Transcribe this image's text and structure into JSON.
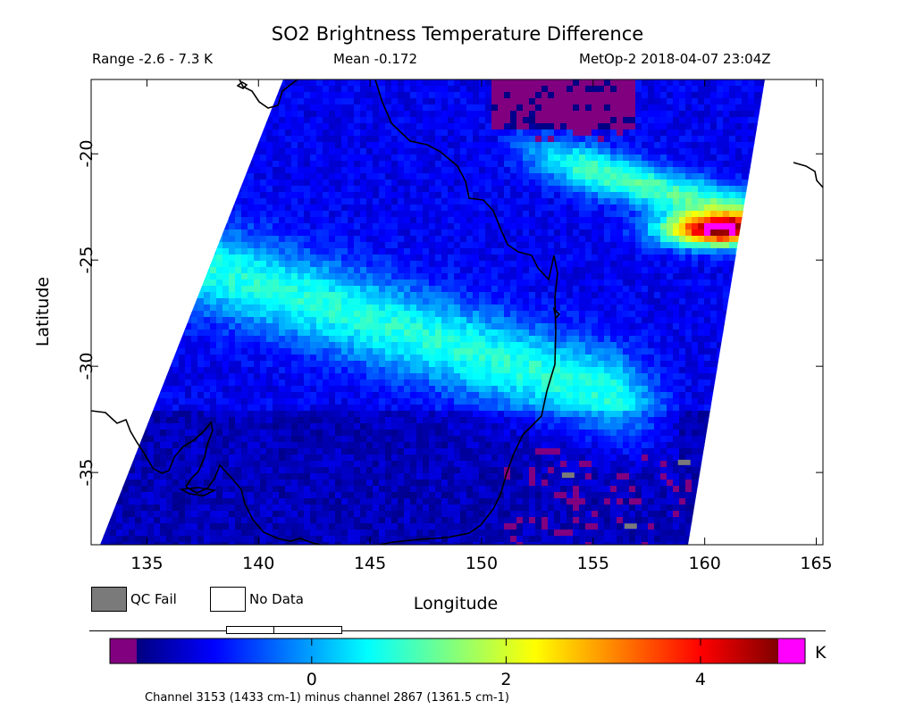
{
  "header": {
    "title": "SO2 Brightness Temperature Difference",
    "range_text": "Range -2.6 - 7.3 K",
    "mean_text": "Mean -0.172",
    "satellite_text": "MetOp-2 2018-04-07 23:04Z"
  },
  "legend": {
    "qc_fail_label": "QC Fail",
    "no_data_label": "No Data",
    "qc_fail_color": "#7a7a7a",
    "no_data_color": "#ffffff"
  },
  "colorbar": {
    "unit": "K",
    "ticks": [
      "0",
      "2",
      "4"
    ],
    "under_color": "#800080",
    "over_color": "#ff00ff",
    "footnote": "Channel 3153 (1433 cm-1) minus channel 2867 (1361.5 cm-1)"
  },
  "chart_data": {
    "type": "heatmap",
    "title": "SO2 Brightness Temperature Difference",
    "xlabel": "Longitude",
    "ylabel": "Latitude",
    "xlim": [
      132.5,
      165.3
    ],
    "ylim": [
      -38.4,
      -16.5
    ],
    "x_ticks": [
      135,
      140,
      145,
      150,
      155,
      160,
      165
    ],
    "y_ticks": [
      -20,
      -25,
      -30,
      -35
    ],
    "x_tick_labels": [
      "135",
      "140",
      "145",
      "150",
      "155",
      "160",
      "165"
    ],
    "y_tick_labels": [
      "-20",
      "-25",
      "-30",
      "-35"
    ],
    "value_range": [
      -2.6,
      7.3
    ],
    "mean": -0.172,
    "unit": "K",
    "colorbar_ticks": [
      0,
      2,
      4
    ],
    "colorbar_range": [
      -1.8,
      4.8
    ],
    "features": [
      {
        "name": "high BTD plume",
        "value_range": [
          3,
          7.3
        ],
        "lon": [
          156,
          161.5
        ],
        "lat": [
          -24.5,
          -22.5
        ]
      },
      {
        "name": "moderate band",
        "value_range": [
          0.5,
          1.5
        ],
        "lon": [
          138,
          155
        ],
        "lat": [
          -31,
          -24
        ]
      },
      {
        "name": "northern arc",
        "value_range": [
          0.5,
          2.5
        ],
        "lon": [
          150,
          161
        ],
        "lat": [
          -23,
          -17
        ]
      }
    ]
  }
}
